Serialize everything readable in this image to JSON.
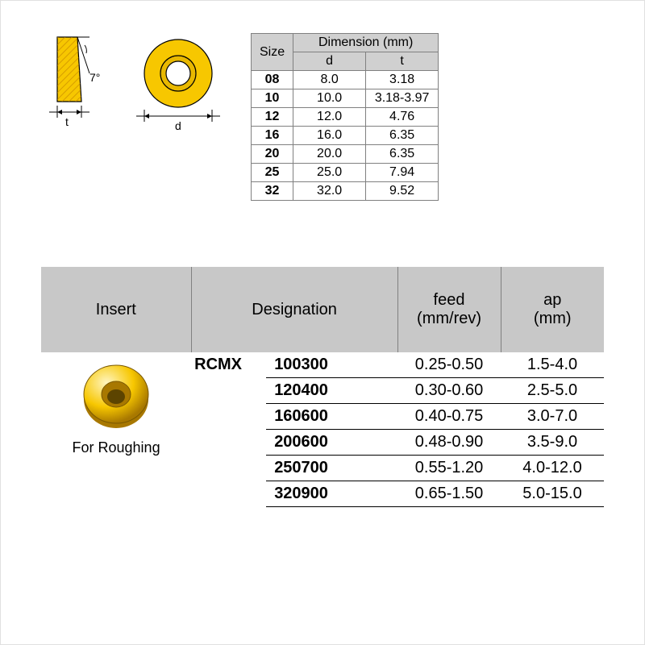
{
  "diagrams": {
    "angle_label": "7°",
    "t_label": "t",
    "d_label": "d",
    "insert_color": "#f7c700",
    "insert_stroke": "#c08000",
    "insert_hole_color": "#e8b800",
    "insert_render_highlight": "#fff5c0",
    "insert_render_shadow": "#a87800"
  },
  "size_table": {
    "header_size": "Size",
    "header_dimension": "Dimension (mm)",
    "header_d": "d",
    "header_t": "t",
    "rows": [
      {
        "size": "08",
        "d": "8.0",
        "t": "3.18"
      },
      {
        "size": "10",
        "d": "10.0",
        "t": "3.18-3.97"
      },
      {
        "size": "12",
        "d": "12.0",
        "t": "4.76"
      },
      {
        "size": "16",
        "d": "16.0",
        "t": "6.35"
      },
      {
        "size": "20",
        "d": "20.0",
        "t": "6.35"
      },
      {
        "size": "25",
        "d": "25.0",
        "t": "7.94"
      },
      {
        "size": "32",
        "d": "32.0",
        "t": "9.52"
      }
    ],
    "header_bg": "#d0d0d0",
    "border_color": "#808080"
  },
  "spec_table": {
    "headers": {
      "insert": "Insert",
      "designation": "Designation",
      "feed": "feed\n(mm/rev)",
      "ap": "ap\n(mm)"
    },
    "insert_caption": "For Roughing",
    "designation_prefix": "RCMX",
    "rows": [
      {
        "code": "100300",
        "feed": "0.25-0.50",
        "ap": "1.5-4.0"
      },
      {
        "code": "120400",
        "feed": "0.30-0.60",
        "ap": "2.5-5.0"
      },
      {
        "code": "160600",
        "feed": "0.40-0.75",
        "ap": "3.0-7.0"
      },
      {
        "code": "200600",
        "feed": "0.48-0.90",
        "ap": "3.5-9.0"
      },
      {
        "code": "250700",
        "feed": "0.55-1.20",
        "ap": "4.0-12.0"
      },
      {
        "code": "320900",
        "feed": "0.65-1.50",
        "ap": "5.0-15.0"
      }
    ],
    "header_bg": "#c8c8c8"
  }
}
